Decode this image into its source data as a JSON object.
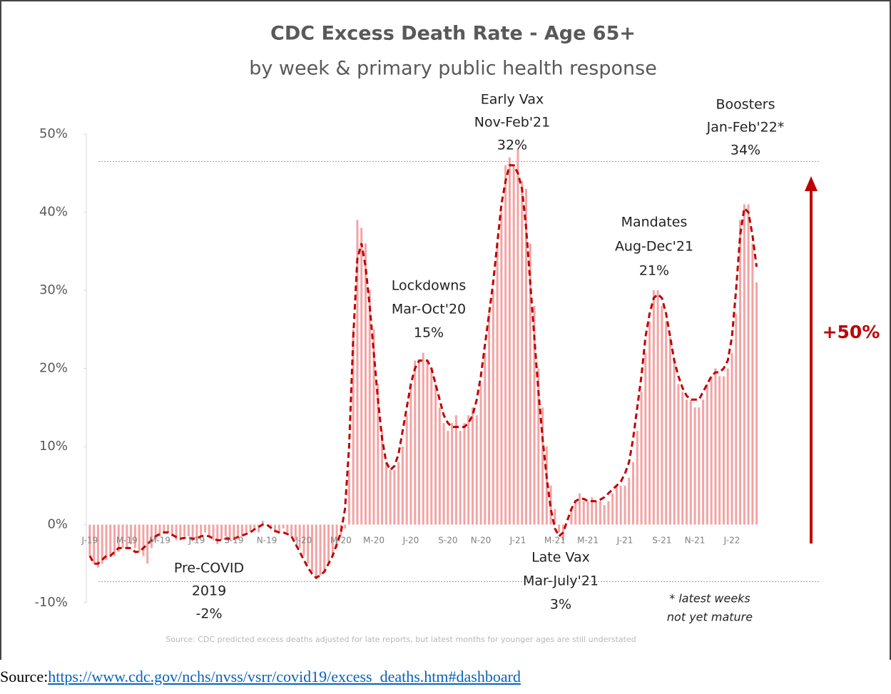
{
  "chart_data": {
    "type": "bar",
    "title": "CDC Excess Death Rate - Age 65+",
    "subtitle": "by week & primary public health response",
    "categories": [
      "J-19",
      null,
      null,
      null,
      null,
      null,
      null,
      null,
      null,
      "M-19",
      null,
      null,
      null,
      null,
      null,
      null,
      null,
      "M-19",
      null,
      null,
      null,
      null,
      null,
      null,
      null,
      null,
      "J-19",
      null,
      null,
      null,
      null,
      null,
      null,
      null,
      null,
      "S-19",
      null,
      null,
      null,
      null,
      null,
      null,
      null,
      "N-19",
      null,
      null,
      null,
      null,
      null,
      null,
      null,
      null,
      "J-20",
      null,
      null,
      null,
      null,
      null,
      null,
      null,
      null,
      "M-20",
      null,
      null,
      null,
      null,
      null,
      null,
      null,
      "M-20",
      null,
      null,
      null,
      null,
      null,
      null,
      null,
      null,
      "J-20",
      null,
      null,
      null,
      null,
      null,
      null,
      null,
      null,
      "S-20",
      null,
      null,
      null,
      null,
      null,
      null,
      null,
      "N-20",
      null,
      null,
      null,
      null,
      null,
      null,
      null,
      null,
      "J-21",
      null,
      null,
      null,
      null,
      null,
      null,
      null,
      null,
      "M-21",
      null,
      null,
      null,
      null,
      null,
      null,
      null,
      "M-21",
      null,
      null,
      null,
      null,
      null,
      null,
      null,
      null,
      "J-21",
      null,
      null,
      null,
      null,
      null,
      null,
      null,
      null,
      "S-21",
      null,
      null,
      null,
      null,
      null,
      null,
      null,
      "N-21",
      null,
      null,
      null,
      null,
      null,
      null,
      null,
      null,
      "J-22",
      null,
      null,
      null,
      null,
      null,
      null
    ],
    "series": [
      {
        "type": "bar",
        "color": "#f4a3a3",
        "values": [
          -4,
          -5,
          -5.5,
          -5,
          -4.5,
          -4,
          -4,
          -3.5,
          -3,
          -3,
          -2.5,
          -3,
          -3.5,
          -4,
          -5,
          -3,
          -2,
          -1.5,
          -1,
          -1,
          -1.5,
          -2,
          -2,
          -1.5,
          -1.5,
          -2,
          -2,
          -1.5,
          -1,
          -1.5,
          -2,
          -2.5,
          -2,
          -1.5,
          -2,
          -2,
          -1.5,
          -1.5,
          -1,
          -1,
          -0.5,
          -1,
          0.5,
          0,
          -0.5,
          -1,
          -1,
          -0.5,
          -1,
          -1.5,
          -2,
          -3,
          -4,
          -5,
          -6,
          -7,
          -6.5,
          -6,
          -5,
          -4,
          -3,
          -1.5,
          -0.5,
          7,
          25,
          39,
          38,
          36,
          30,
          25,
          18,
          12,
          8,
          7,
          7,
          8,
          10,
          14,
          18,
          21,
          21,
          22,
          21,
          20,
          18,
          15,
          13,
          12,
          13,
          14,
          12,
          13,
          14,
          15,
          14,
          18,
          22,
          27,
          30,
          36,
          40,
          46,
          47,
          46,
          48,
          44,
          43,
          36,
          28,
          20,
          15,
          10,
          5,
          2,
          -1,
          -2,
          0,
          2,
          3,
          4,
          3,
          3,
          3.5,
          3,
          3,
          2.5,
          3,
          4,
          5,
          5,
          5,
          6,
          8,
          12,
          17,
          22,
          26,
          30,
          30,
          28,
          26,
          24,
          21,
          18,
          17,
          16,
          16,
          15,
          15,
          16,
          18,
          19,
          20,
          19,
          19,
          20,
          22,
          27,
          39,
          41,
          41,
          36,
          31
        ]
      },
      {
        "type": "line",
        "color": "#c00000",
        "values": [
          -4,
          -5,
          -5,
          -4.5,
          -4,
          -4,
          -3.5,
          -3,
          -3,
          -3,
          -3,
          -3.5,
          -3.5,
          -3,
          -2.5,
          -2,
          -1.5,
          -1.2,
          -1,
          -1,
          -1.3,
          -1.6,
          -1.8,
          -1.7,
          -1.7,
          -1.8,
          -1.8,
          -1.5,
          -1.4,
          -1.5,
          -1.8,
          -2,
          -2,
          -1.8,
          -1.8,
          -1.8,
          -1.6,
          -1.4,
          -1.2,
          -1,
          -0.6,
          -0.3,
          0,
          0,
          -0.4,
          -0.8,
          -1,
          -1,
          -1.2,
          -1.5,
          -2.5,
          -3.5,
          -4.5,
          -5.5,
          -6.3,
          -6.8,
          -6.5,
          -6,
          -5,
          -4,
          -2.5,
          -1,
          2,
          10,
          24,
          34,
          36,
          33,
          28,
          22,
          16,
          11,
          8,
          7,
          7.5,
          9,
          12,
          15,
          18,
          20,
          21,
          21,
          21,
          20,
          18,
          16,
          14,
          13,
          12.5,
          12.5,
          12.5,
          12.5,
          13,
          14,
          16,
          19,
          23,
          27,
          31,
          36,
          41,
          44,
          46,
          46,
          45,
          43,
          38,
          31,
          24,
          17,
          11,
          6,
          2,
          -0.5,
          -1.5,
          -1,
          0.5,
          2,
          3,
          3.3,
          3.3,
          3,
          3,
          3,
          3.2,
          3.5,
          4,
          4.5,
          5,
          5.5,
          6.5,
          8,
          11,
          15,
          19,
          24,
          27,
          29,
          29.5,
          29,
          27,
          24,
          21,
          19,
          17.5,
          16.5,
          16,
          16,
          16,
          17,
          18,
          19,
          19.5,
          19.5,
          20,
          21,
          24,
          30,
          37,
          40.5,
          40,
          37,
          33
        ]
      }
    ],
    "ylim": [
      -10,
      50
    ],
    "yticks": [
      {
        "value": -10,
        "label": "-10%"
      },
      {
        "value": 0,
        "label": "0%"
      },
      {
        "value": 10,
        "label": "10%"
      },
      {
        "value": 20,
        "label": "20%"
      },
      {
        "value": 30,
        "label": "30%"
      },
      {
        "value": 40,
        "label": "40%"
      },
      {
        "value": 50,
        "label": "50%"
      }
    ],
    "reference_lines": [
      46.5,
      -7.3
    ],
    "annotations": [
      {
        "lines": [
          "Early Vax",
          "Nov-Feb'21",
          "32%"
        ]
      },
      {
        "lines": [
          "Boosters",
          "Jan-Feb'22*",
          "34%"
        ]
      },
      {
        "lines": [
          "Mandates",
          "Aug-Dec'21",
          "21%"
        ]
      },
      {
        "lines": [
          "Lockdowns",
          "Mar-Oct'20",
          "15%"
        ]
      },
      {
        "lines": [
          "Late Vax",
          "Mar-July'21",
          "3%"
        ]
      },
      {
        "lines": [
          "Pre-COVID",
          "2019",
          "-2%"
        ]
      },
      {
        "lines": [
          "* latest weeks",
          "not yet mature"
        ]
      }
    ],
    "change_label": "+50%",
    "note": "Source: CDC predicted excess deaths adjusted for late reports, but latest months for younger ages are still understated"
  },
  "footer": {
    "label": "Source:",
    "link": "https://www.cdc.gov/nchs/nvss/vsrr/covid19/excess_deaths.htm#dashboard"
  }
}
